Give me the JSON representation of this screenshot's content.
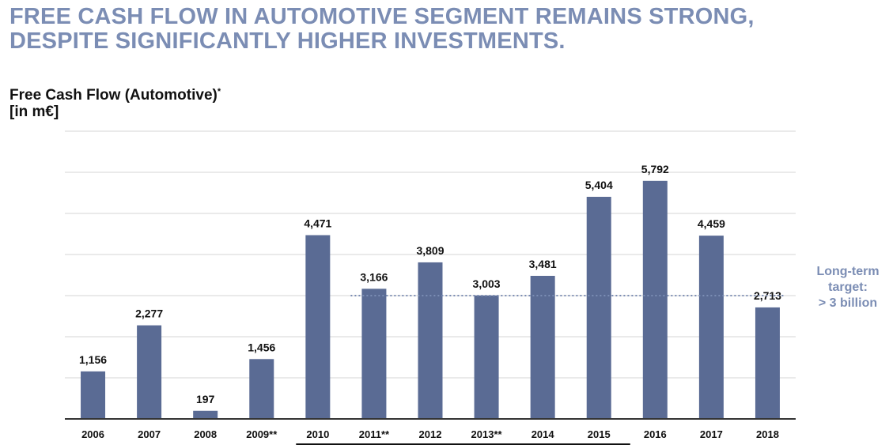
{
  "headline": {
    "line1": "FREE CASH FLOW IN AUTOMOTIVE SEGMENT REMAINS STRONG,",
    "line2": "DESPITE SIGNIFICANTLY HIGHER INVESTMENTS."
  },
  "target_note": {
    "line1": "Long-term",
    "line2": "target:",
    "line3": "> 3 billion"
  },
  "colors": {
    "bar": "#5a6b94",
    "headline": "#7b8db4",
    "gridline": "#d4d4d4",
    "target_line": "#7b8db4"
  },
  "chart_data": {
    "type": "bar",
    "title": "Free Cash Flow (Automotive)",
    "title_marker": "*",
    "unit_label": "[in m€]",
    "categories": [
      "2006",
      "2007",
      "2008",
      "2009**",
      "2010",
      "2011**",
      "2012",
      "2013**",
      "2014",
      "2015",
      "2016",
      "2017",
      "2018"
    ],
    "values": [
      1156,
      2277,
      197,
      1456,
      4471,
      3166,
      3809,
      3003,
      3481,
      5404,
      5792,
      4459,
      2713
    ],
    "value_labels": [
      "1,156",
      "2,277",
      "197",
      "1,456",
      "4,471",
      "3,166",
      "3,809",
      "3,003",
      "3,481",
      "5,404",
      "5,792",
      "4,459",
      "2,713"
    ],
    "ylim": [
      0,
      7000
    ],
    "grid": true,
    "gridline_step": 1000,
    "target_value": 3000,
    "target_line_range": [
      "2011**",
      "2018"
    ],
    "underline_range": [
      "2010",
      "2015"
    ]
  }
}
